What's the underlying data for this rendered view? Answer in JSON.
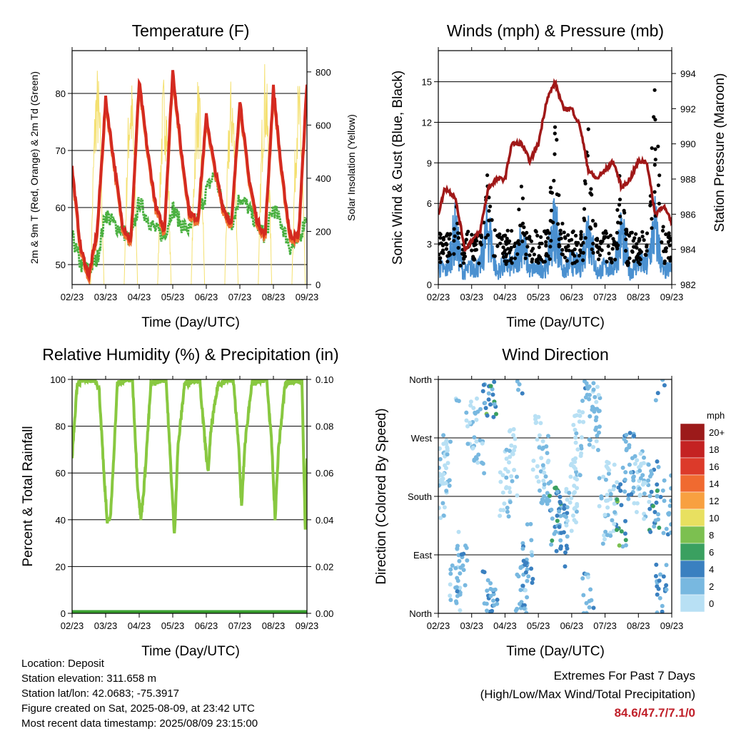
{
  "info": {
    "location": "Location: Deposit",
    "elevation": "Station elevation: 311.658 m",
    "latlon": "Station lat/lon: 42.0683; -75.3917",
    "created": "Figure created on Sat, 2025-08-09, at 23:42 UTC",
    "recent": "Most recent data timestamp: 2025/08/09 23:15:00"
  },
  "extremes": {
    "title": "Extremes For Past 7 Days",
    "subtitle": "(High/Low/Max Wind/Total Precipitation)",
    "values": "84.6/47.7/7.1/0"
  },
  "colors": {
    "temp": "#d42a20",
    "temp9m": "#f07030",
    "dewpoint": "#4ab040",
    "solar": "#f4e070",
    "gust": "#000000",
    "wind": "#4a90d0",
    "pressure": "#a01818",
    "rh": "#88c840",
    "precip": "#3aa030"
  },
  "chart_data": [
    {
      "type": "line",
      "title": "Temperature (F)",
      "xlabel": "Time (Day/UTC)",
      "ylabel": "2m & 9m T (Red, Orange) & 2m Td (Green)",
      "ylabel_right": "Solar Insolation (Yellow)",
      "x_ticks": [
        "02/23",
        "03/23",
        "04/23",
        "05/23",
        "06/23",
        "07/23",
        "08/23",
        "09/23"
      ],
      "ylim": [
        46.5,
        87.5
      ],
      "y_ticks": [
        50,
        60,
        70,
        80
      ],
      "ylim_right": [
        0,
        880
      ],
      "y_ticks_right": [
        0,
        200,
        400,
        600,
        800
      ],
      "series": [
        {
          "name": "2m T",
          "axis": "left",
          "color": "#d42a20",
          "x": [
            0,
            0.25,
            0.5,
            0.75,
            1,
            1.25,
            1.5,
            1.75,
            2,
            2.25,
            2.5,
            2.75,
            3,
            3.25,
            3.5,
            3.75,
            4,
            4.25,
            4.5,
            4.75,
            5,
            5.25,
            5.5,
            5.75,
            6,
            6.25,
            6.5,
            6.75,
            7
          ],
          "values": [
            67,
            53,
            48,
            56,
            79,
            68,
            57,
            54,
            82,
            70,
            60,
            56,
            84,
            70,
            59,
            58,
            76,
            67,
            60,
            57,
            79,
            66,
            58,
            55,
            81,
            66,
            55,
            55,
            82
          ]
        },
        {
          "name": "2m Td",
          "axis": "left",
          "color": "#4ab040",
          "x": [
            0,
            0.25,
            0.5,
            0.75,
            1,
            1.25,
            1.5,
            1.75,
            2,
            2.25,
            2.5,
            2.75,
            3,
            3.25,
            3.5,
            3.75,
            4,
            4.25,
            4.5,
            4.75,
            5,
            5.25,
            5.5,
            5.75,
            6,
            6.25,
            6.5,
            6.75,
            7
          ],
          "values": [
            55,
            50,
            49,
            51,
            59,
            57,
            56,
            54,
            61,
            58,
            56,
            55,
            60,
            57,
            56,
            58,
            63,
            66,
            60,
            57,
            62,
            60,
            57,
            55,
            60,
            57,
            53,
            54,
            59
          ]
        },
        {
          "name": "Solar",
          "axis": "right",
          "color": "#f4e070",
          "x": [
            0,
            0.25,
            0.5,
            0.75,
            1,
            1.25,
            1.5,
            1.75,
            2,
            2.25,
            2.5,
            2.75,
            3,
            3.25,
            3.5,
            3.75,
            4,
            4.25,
            4.5,
            4.75,
            5,
            5.25,
            5.5,
            5.75,
            6,
            6.25,
            6.5,
            6.75,
            7
          ],
          "values": [
            0,
            0,
            0,
            830,
            0,
            0,
            0,
            800,
            0,
            0,
            0,
            810,
            0,
            0,
            0,
            790,
            0,
            0,
            0,
            790,
            0,
            0,
            0,
            850,
            0,
            0,
            0,
            780,
            0
          ]
        }
      ]
    },
    {
      "type": "scatter",
      "title": "Winds (mph) & Pressure (mb)",
      "xlabel": "Time (Day/UTC)",
      "ylabel": "Sonic Wind & Gust (Blue, Black)",
      "ylabel_right": "Station Pressure (Maroon)",
      "x_ticks": [
        "02/23",
        "03/23",
        "04/23",
        "05/23",
        "06/23",
        "07/23",
        "08/23",
        "09/23"
      ],
      "ylim": [
        0,
        17.3
      ],
      "y_ticks": [
        0,
        3,
        6,
        9,
        12,
        15
      ],
      "ylim_right": [
        982,
        995.3
      ],
      "y_ticks_right": [
        982,
        984,
        986,
        988,
        990,
        992,
        994
      ],
      "series": [
        {
          "name": "Wind",
          "axis": "left",
          "color": "#4a90d0",
          "x": [
            0,
            0.25,
            0.5,
            0.75,
            1,
            1.25,
            1.5,
            1.75,
            2,
            2.25,
            2.5,
            2.75,
            3,
            3.25,
            3.5,
            3.75,
            4,
            4.25,
            4.5,
            4.75,
            5,
            5.25,
            5.5,
            5.75,
            6,
            6.25,
            6.5,
            6.75,
            7
          ],
          "values": [
            1.5,
            1.2,
            4.5,
            1.0,
            1.5,
            1.5,
            5,
            1,
            1.8,
            1.5,
            3.8,
            1.2,
            1.5,
            1.5,
            5.5,
            1.0,
            2.0,
            1.5,
            5,
            1.0,
            1.5,
            1.5,
            4.5,
            1.0,
            2,
            1.5,
            5,
            1,
            1.5
          ]
        },
        {
          "name": "Gust",
          "axis": "left",
          "color": "#000000",
          "x": [
            0.2,
            0.35,
            0.5,
            0.65,
            1.1,
            1.3,
            1.5,
            1.65,
            2.1,
            2.35,
            2.5,
            2.65,
            3.1,
            3.3,
            3.5,
            3.65,
            4.1,
            4.35,
            4.5,
            4.65,
            5.1,
            5.3,
            5.5,
            5.65,
            6.1,
            6.3,
            6.5,
            6.7,
            6.9
          ],
          "values": [
            3,
            5,
            6.5,
            4,
            3,
            4,
            9.5,
            5,
            3,
            5,
            8,
            4,
            3,
            5,
            14,
            5,
            3,
            6,
            12,
            5,
            3,
            5,
            10,
            4,
            3,
            5,
            15,
            6,
            11
          ]
        },
        {
          "name": "Pressure",
          "axis": "right",
          "color": "#a01818",
          "x": [
            0,
            0.2,
            0.5,
            0.8,
            1,
            1.25,
            1.5,
            1.75,
            2,
            2.2,
            2.5,
            2.75,
            3,
            3.25,
            3.5,
            3.75,
            4,
            4.25,
            4.5,
            4.75,
            5,
            5.25,
            5.5,
            5.75,
            6,
            6.25,
            6.5,
            6.75,
            7
          ],
          "values": [
            986,
            987.5,
            987,
            984,
            984.5,
            985,
            987.5,
            988,
            988,
            990,
            990,
            989,
            990,
            992.5,
            993.5,
            992,
            992,
            991,
            988.5,
            988,
            988.5,
            989,
            987.5,
            988,
            989,
            989,
            986,
            986.5,
            985.5
          ]
        }
      ]
    },
    {
      "type": "line",
      "title": "Relative Humidity (%) & Precipitation (in)",
      "xlabel": "Time (Day/UTC)",
      "ylabel": "Percent & Total Rainfall",
      "x_ticks": [
        "02/23",
        "03/23",
        "04/23",
        "05/23",
        "06/23",
        "07/23",
        "08/23",
        "09/23"
      ],
      "ylim": [
        0,
        100
      ],
      "y_ticks": [
        0,
        20,
        40,
        60,
        80,
        100
      ],
      "ylim_right": [
        0,
        0.1
      ],
      "y_ticks_right": [
        "0.00",
        "0.02",
        "0.04",
        "0.06",
        "0.08",
        "0.10"
      ],
      "series": [
        {
          "name": "RH",
          "axis": "left",
          "color": "#88c840",
          "x": [
            0,
            0.15,
            0.35,
            0.65,
            0.8,
            0.95,
            1.05,
            1.15,
            1.35,
            1.65,
            1.8,
            1.95,
            2.05,
            2.15,
            2.35,
            2.65,
            2.8,
            2.95,
            3.05,
            3.15,
            3.35,
            3.65,
            3.8,
            3.95,
            4.05,
            4.15,
            4.35,
            4.65,
            4.8,
            4.95,
            5.05,
            5.15,
            5.35,
            5.65,
            5.8,
            5.95,
            6.05,
            6.15,
            6.35,
            6.65,
            6.85,
            6.95,
            7
          ],
          "values": [
            67,
            98,
            100,
            100,
            97,
            60,
            38,
            42,
            98,
            100,
            100,
            55,
            40,
            55,
            98,
            100,
            100,
            60,
            33,
            70,
            98,
            100,
            100,
            75,
            60,
            80,
            98,
            100,
            100,
            75,
            45,
            72,
            98,
            100,
            100,
            72,
            40,
            70,
            98,
            100,
            99,
            35,
            66
          ]
        },
        {
          "name": "Precipitation",
          "axis": "right",
          "color": "#3aa030",
          "x": [
            0,
            7
          ],
          "values": [
            0,
            0
          ]
        }
      ]
    },
    {
      "type": "scatter",
      "title": "Wind Direction",
      "xlabel": "Time (Day/UTC)",
      "ylabel": "Direction (Colored By Speed)",
      "x_ticks": [
        "02/23",
        "03/23",
        "04/23",
        "05/23",
        "06/23",
        "07/23",
        "08/23",
        "09/23"
      ],
      "y_ticks": [
        "North",
        "East",
        "South",
        "West",
        "North"
      ],
      "ylim": [
        0,
        360
      ],
      "colorbar": {
        "title": "mph",
        "labels": [
          "20+",
          "18",
          "16",
          "14",
          "12",
          "10",
          "8",
          "6",
          "4",
          "2",
          "0"
        ],
        "colors": [
          "#9c1a1a",
          "#c42222",
          "#dc3a2a",
          "#f06a30",
          "#f8a040",
          "#e8e060",
          "#7cc050",
          "#3aa060",
          "#3a80c0",
          "#78b8e0",
          "#b8e0f4"
        ]
      },
      "series": [
        {
          "name": "Direction",
          "x": [
            0.1,
            0.2,
            0.5,
            0.7,
            1.0,
            1.2,
            1.5,
            1.6,
            2.0,
            2.2,
            2.5,
            2.7,
            3.0,
            3.2,
            3.5,
            3.7,
            4.0,
            4.2,
            4.5,
            4.7,
            5.0,
            5.2,
            5.5,
            5.7,
            6.0,
            6.2,
            6.5,
            6.7,
            6.9
          ],
          "values": [
            200,
            230,
            20,
            80,
            300,
            260,
            10,
            350,
            200,
            230,
            30,
            100,
            250,
            220,
            150,
            120,
            180,
            260,
            20,
            300,
            160,
            180,
            150,
            230,
            210,
            200,
            180,
            20,
            170
          ],
          "speed": [
            1,
            1,
            2,
            3,
            1,
            2,
            4,
            6,
            1,
            1,
            3,
            3,
            1,
            2,
            5,
            4,
            1,
            1,
            3,
            2,
            2,
            1,
            6,
            3,
            1,
            2,
            5,
            4,
            3
          ]
        }
      ]
    }
  ]
}
